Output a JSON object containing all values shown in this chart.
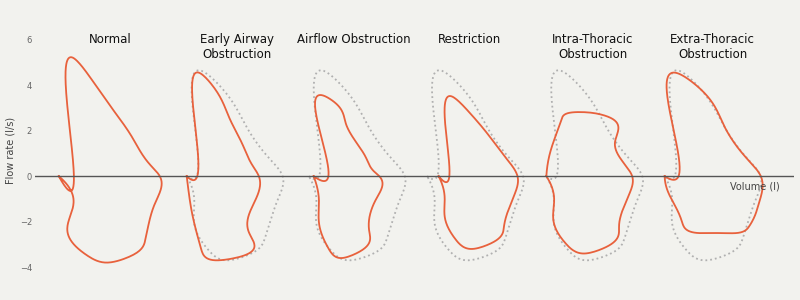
{
  "title_labels": [
    "Normal",
    "Early Airway\nObstruction",
    "Airflow Obstruction",
    "Restriction",
    "Intra-Thoracic\nObstruction",
    "Extra-Thoracic\nObstruction"
  ],
  "ylabel": "Flow rate (l/s)",
  "xlabel": "Volume (l)",
  "loop_color": "#E8613C",
  "normal_color": "#B0B0B0",
  "bg_color": "#F2F2EE",
  "axis_line_color": "#555555",
  "lw": 1.3,
  "title_fontsize": 8.5,
  "label_fontsize": 7
}
